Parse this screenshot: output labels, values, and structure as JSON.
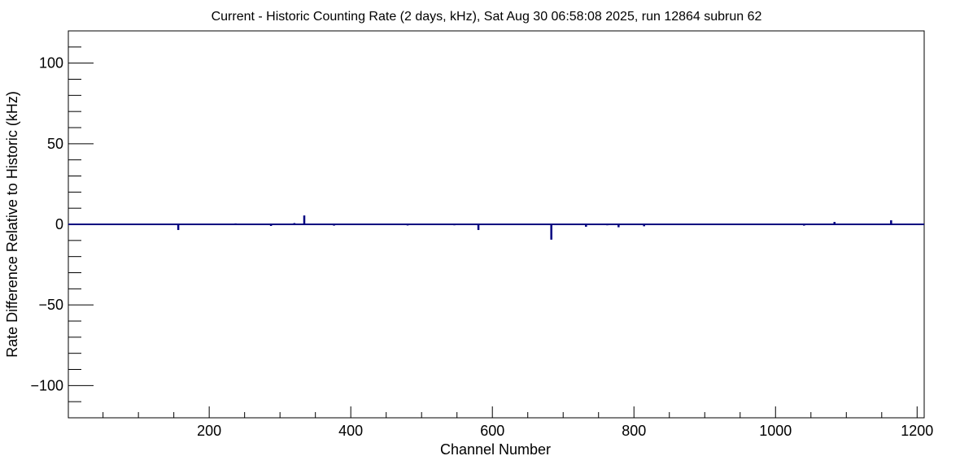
{
  "chart_data": {
    "type": "bar",
    "title": "Current - Historic Counting Rate (2 days, kHz), Sat Aug 30 06:58:08 2025, run 12864 subrun 62",
    "xlabel": "Channel Number",
    "ylabel": "Rate Difference Relative to Historic (kHz)",
    "xlim": [
      1,
      1210
    ],
    "ylim": [
      -120,
      120
    ],
    "x_ticks": [
      200,
      400,
      600,
      800,
      1000,
      1200
    ],
    "x_tick_labels": [
      "200",
      "400",
      "600",
      "800",
      "1000",
      "1200"
    ],
    "y_ticks": [
      -100,
      -50,
      0,
      50,
      100
    ],
    "y_tick_labels": [
      "−100",
      "−50",
      "0",
      "50",
      "100"
    ],
    "grid": false,
    "legend": false,
    "series": [
      {
        "color": "#000080",
        "x": [
          156,
          237,
          287,
          320,
          334,
          376,
          480,
          516,
          546,
          580,
          683,
          732,
          762,
          778,
          814,
          1040,
          1083,
          1163
        ],
        "values": [
          -3.5,
          0.6,
          -1.0,
          0.8,
          5.5,
          -0.8,
          -0.7,
          0.5,
          -0.6,
          -3.5,
          -9.5,
          -1.5,
          -0.6,
          -1.8,
          -1.2,
          -0.8,
          1.5,
          2.5
        ]
      }
    ]
  }
}
